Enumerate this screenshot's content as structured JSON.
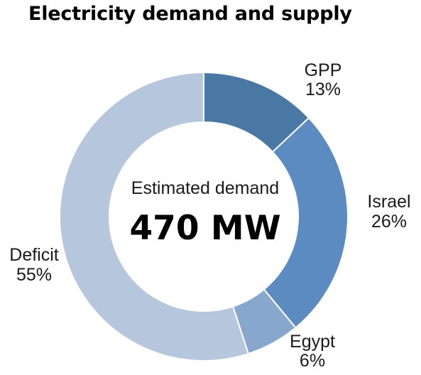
{
  "chart_data": {
    "type": "pie",
    "title": "Electricity demand and supply",
    "center_caption": "Estimated demand",
    "center_value": "470 MW",
    "slices": [
      {
        "name": "GPP",
        "value": 13,
        "label": "13%",
        "color": "#4a78a4"
      },
      {
        "name": "Israel",
        "value": 26,
        "label": "26%",
        "color": "#5b8bc0"
      },
      {
        "name": "Egypt",
        "value": 6,
        "label": "6%",
        "color": "#87a7cc"
      },
      {
        "name": "Deficit",
        "value": 55,
        "label": "55%",
        "color": "#b5c6dd"
      }
    ]
  }
}
